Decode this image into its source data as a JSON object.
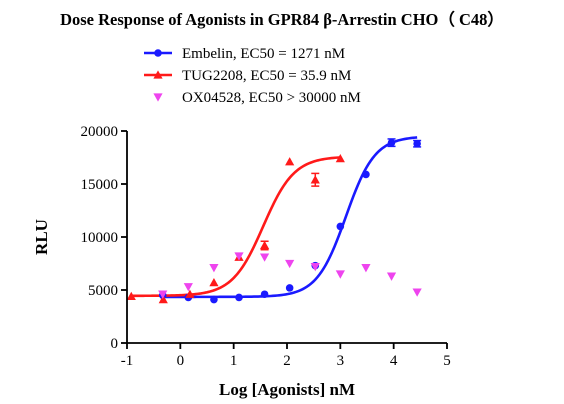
{
  "chart_data": {
    "type": "scatter",
    "title": "Dose Response of Agonists in GPR84 β-Arrestin CHO（ C48）",
    "xlabel": "Log [Agonists] nM",
    "ylabel": "RLU",
    "xlim": [
      -1,
      5
    ],
    "ylim": [
      0,
      20000
    ],
    "xticks": [
      "-1",
      "0",
      "1",
      "2",
      "3",
      "4",
      "5"
    ],
    "yticks": [
      "0",
      "5000",
      "10000",
      "15000",
      "20000"
    ],
    "grid": false,
    "legend_position": "top",
    "series": [
      {
        "name": "Embelin, EC50 = 1271 nM",
        "color": "#1a1aff",
        "marker": "circle",
        "x": [
          -0.33,
          0.15,
          0.63,
          1.1,
          1.58,
          2.05,
          2.53,
          3.0,
          3.48,
          3.96,
          4.44
        ],
        "y": [
          4500,
          4300,
          4100,
          4300,
          4600,
          5200,
          7300,
          11000,
          15900,
          18900,
          18800
        ],
        "yerr": [
          0,
          0,
          0,
          0,
          0,
          0,
          0,
          0,
          0,
          350,
          300
        ],
        "fit": {
          "bottom": 4350,
          "top": 19500,
          "logEC50": 3.104,
          "hill": 1.6
        }
      },
      {
        "name": "TUG2208, EC50 = 35.9 nM",
        "color": "#ff1a1a",
        "marker": "triangle-up",
        "x": [
          -0.92,
          -0.32,
          0.18,
          0.63,
          1.1,
          1.58,
          2.05,
          2.53,
          3.0
        ],
        "y": [
          4400,
          4100,
          4600,
          5700,
          8100,
          9200,
          17100,
          15400,
          17400
        ],
        "yerr": [
          0,
          0,
          0,
          0,
          0,
          400,
          0,
          600,
          0
        ],
        "fit": {
          "bottom": 4450,
          "top": 17600,
          "logEC50": 1.555,
          "hill": 1.5
        }
      },
      {
        "name": "OX04528, EC50 > 30000 nM",
        "color": "#ee44ee",
        "marker": "triangle-down",
        "x": [
          -0.33,
          0.15,
          0.63,
          1.1,
          1.58,
          2.05,
          2.53,
          3.0,
          3.48,
          3.96,
          4.44
        ],
        "y": [
          4600,
          5300,
          7100,
          8200,
          8100,
          7500,
          7200,
          6500,
          7100,
          6300,
          4800
        ],
        "yerr": [
          0,
          0,
          0,
          0,
          0,
          0,
          0,
          0,
          0,
          0,
          0
        ]
      }
    ]
  }
}
